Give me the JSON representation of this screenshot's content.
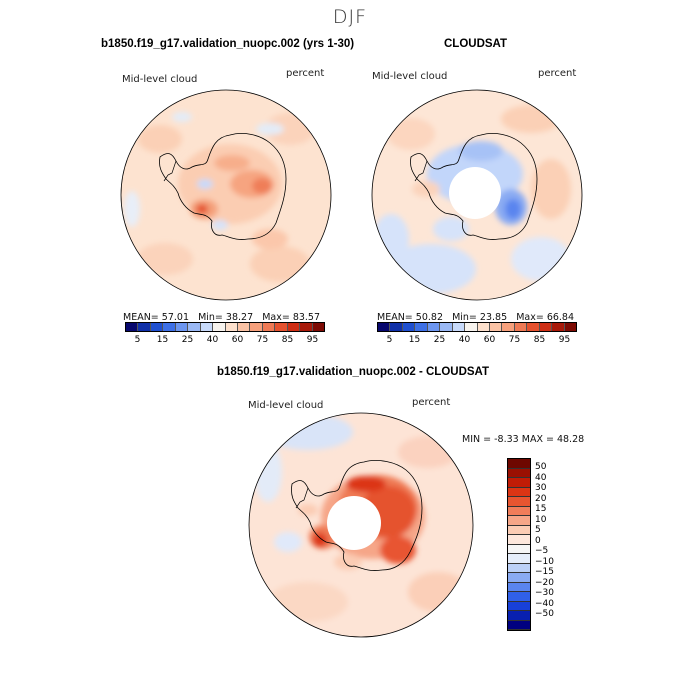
{
  "header": {
    "title": "DJF"
  },
  "panels": {
    "top_left": {
      "title": "b1850.f19_g17.validation_nuopc.002 (yrs 1-30)",
      "field_label": "Mid-level cloud",
      "unit_label": "percent",
      "stats": {
        "mean_label": "MEAN=",
        "mean": "57.01",
        "min_label": "Min=",
        "min": "38.27",
        "max_label": "Max=",
        "max": "83.57"
      }
    },
    "top_right": {
      "title": "CLOUDSAT",
      "field_label": "Mid-level cloud",
      "unit_label": "percent",
      "stats": {
        "mean_label": "MEAN=",
        "mean": "50.82",
        "min_label": "Min=",
        "min": "23.85",
        "max_label": "Max=",
        "max": "66.84"
      }
    },
    "bottom": {
      "title": "b1850.f19_g17.validation_nuopc.002 - CLOUDSAT",
      "field_label": "Mid-level cloud",
      "unit_label": "percent",
      "stats": {
        "min_label": "MIN =",
        "min": "-8.33",
        "max_label": "MAX =",
        "max": "48.28"
      }
    }
  },
  "colorbar_abs": {
    "colors": [
      "#08086e",
      "#1030a8",
      "#2050d0",
      "#3e70e6",
      "#6d96f0",
      "#9bb9f5",
      "#c8dafa",
      "#f7f3ee",
      "#fde0cc",
      "#fbc3a5",
      "#f6a07c",
      "#ef7a55",
      "#e5522f",
      "#cf2f15",
      "#a81a0a",
      "#7d0b04"
    ],
    "ticks": [
      "5",
      "15",
      "25",
      "40",
      "60",
      "75",
      "85",
      "95"
    ]
  },
  "colorbar_diff": {
    "colors": [
      "#000080",
      "#0820b0",
      "#1840d8",
      "#3060e8",
      "#5a85ef",
      "#8aabf3",
      "#bcd1f8",
      "#e6eefb",
      "#f6f6f6",
      "#fde7dc",
      "#fbccb4",
      "#f6a688",
      "#f07d5a",
      "#e85530",
      "#dc3514",
      "#c11c06",
      "#9a1002",
      "#6e0700"
    ],
    "ticks": [
      "50",
      "40",
      "30",
      "20",
      "15",
      "10",
      "5",
      "0",
      "−5",
      "−10",
      "−15",
      "−20",
      "−30",
      "−40",
      "−50"
    ]
  }
}
